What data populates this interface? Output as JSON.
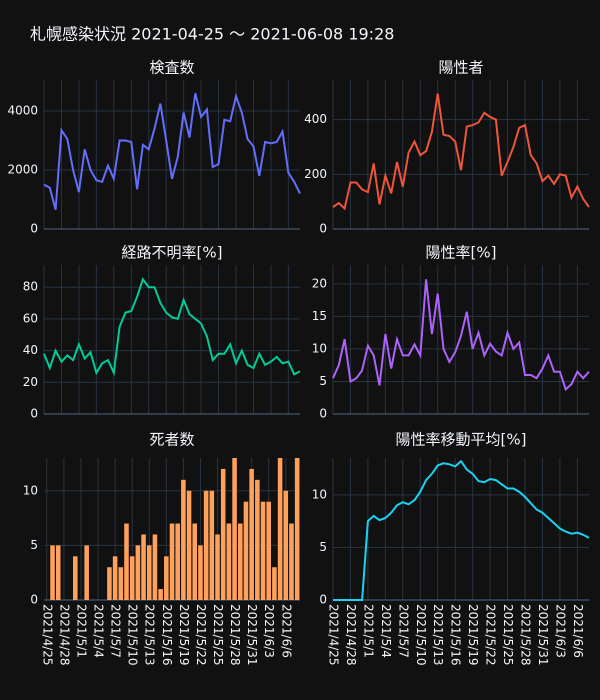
{
  "title": "札幌感染状況 2021-04-25 ～ 2021-06-08 19:28",
  "dates": [
    "2021/4/25",
    null,
    null,
    "2021/4/28",
    null,
    null,
    "2021/5/1",
    null,
    null,
    "2021/5/4",
    null,
    null,
    "2021/5/7",
    null,
    null,
    "2021/5/10",
    null,
    null,
    "2021/5/13",
    null,
    null,
    "2021/5/16",
    null,
    null,
    "2021/5/19",
    null,
    null,
    "2021/5/22",
    null,
    null,
    "2021/5/25",
    null,
    null,
    "2021/5/28",
    null,
    null,
    "2021/5/31",
    null,
    null,
    "2021/6/3",
    null,
    null,
    "2021/6/6",
    null,
    null
  ],
  "chart_data": [
    {
      "type": "line",
      "title": "検査数",
      "color": "#636efa",
      "ylim": [
        0,
        5050
      ],
      "yticks": [
        0,
        2000,
        4000
      ],
      "grid": true,
      "values": [
        1500,
        1400,
        650,
        3350,
        3050,
        2000,
        1250,
        2700,
        2000,
        1650,
        1600,
        2150,
        1700,
        3000,
        3000,
        2950,
        1350,
        2850,
        2700,
        3400,
        4250,
        3000,
        1700,
        2450,
        3950,
        3100,
        4600,
        3800,
        4050,
        2100,
        2200,
        3700,
        3650,
        4500,
        3950,
        3050,
        2800,
        1800,
        2950,
        2900,
        2950,
        3300,
        1900,
        1600,
        1200
      ]
    },
    {
      "type": "line",
      "title": "陽性者",
      "color": "#ef553b",
      "ylim": [
        0,
        545
      ],
      "yticks": [
        0,
        200,
        400
      ],
      "grid": true,
      "values": [
        80,
        95,
        75,
        170,
        170,
        145,
        135,
        240,
        90,
        195,
        130,
        245,
        155,
        280,
        320,
        270,
        285,
        355,
        495,
        345,
        340,
        320,
        215,
        375,
        380,
        390,
        425,
        410,
        400,
        195,
        245,
        300,
        370,
        380,
        270,
        240,
        175,
        195,
        165,
        200,
        195,
        115,
        155,
        110,
        80
      ]
    },
    {
      "type": "line",
      "title": "経路不明率[%]",
      "color": "#00cc96",
      "ylim": [
        0,
        94
      ],
      "yticks": [
        0,
        20,
        40,
        60,
        80
      ],
      "grid": true,
      "values": [
        38,
        29,
        40,
        33,
        37,
        34,
        44,
        35,
        39,
        26,
        32,
        34,
        26,
        55,
        64,
        65,
        74,
        85,
        80,
        80,
        70,
        64,
        61,
        60,
        72,
        63,
        60,
        57,
        49,
        34,
        38,
        38,
        44,
        32,
        40,
        31,
        29,
        38,
        31,
        33,
        36,
        32,
        33,
        25,
        27
      ]
    },
    {
      "type": "line",
      "title": "陽性率[%]",
      "color": "#ab63fa",
      "ylim": [
        0,
        22.9
      ],
      "yticks": [
        0,
        5,
        10,
        15,
        20
      ],
      "grid": true,
      "values": [
        5.5,
        7.5,
        11.5,
        5,
        5.5,
        6.7,
        10.5,
        9,
        4.4,
        12.3,
        7,
        11.5,
        9,
        9,
        10.7,
        9,
        20.7,
        12.3,
        18.5,
        10,
        8,
        9.5,
        12,
        15.7,
        10,
        12.5,
        9,
        10.8,
        9.6,
        9,
        12.5,
        10,
        11,
        6,
        6,
        5.5,
        7,
        9,
        6.5,
        6.5,
        3.8,
        4.6,
        6.5,
        5.5,
        6.5
      ]
    },
    {
      "type": "bar",
      "title": "死者数",
      "color": "#ffa15a",
      "ylim": [
        0,
        13
      ],
      "yticks": [
        0,
        5,
        10
      ],
      "grid": true,
      "values": [
        0,
        5,
        5,
        0,
        0,
        4,
        0,
        5,
        0,
        0,
        0,
        3,
        4,
        3,
        7,
        4,
        5,
        6,
        5,
        6,
        1,
        4,
        7,
        7,
        11,
        10,
        7,
        5,
        10,
        10,
        6,
        12,
        7,
        13,
        7,
        9,
        12,
        11,
        9,
        9,
        3,
        13,
        10,
        7,
        13
      ]
    },
    {
      "type": "line",
      "title": "陽性率移動平均[%]",
      "color": "#19d3f3",
      "ylim": [
        0,
        13.5
      ],
      "yticks": [
        0,
        5,
        10
      ],
      "grid": true,
      "values": [
        0,
        0,
        0,
        0,
        0,
        0,
        7.5,
        8,
        7.6,
        7.8,
        8.3,
        9,
        9.3,
        9.1,
        9.5,
        10.3,
        11.4,
        12,
        12.8,
        13,
        12.9,
        12.7,
        13.2,
        12.4,
        12,
        11.3,
        11.2,
        11.5,
        11.4,
        11,
        10.6,
        10.6,
        10.3,
        9.8,
        9.2,
        8.6,
        8.3,
        7.8,
        7.3,
        6.8,
        6.5,
        6.3,
        6.4,
        6.2,
        5.9
      ]
    }
  ]
}
